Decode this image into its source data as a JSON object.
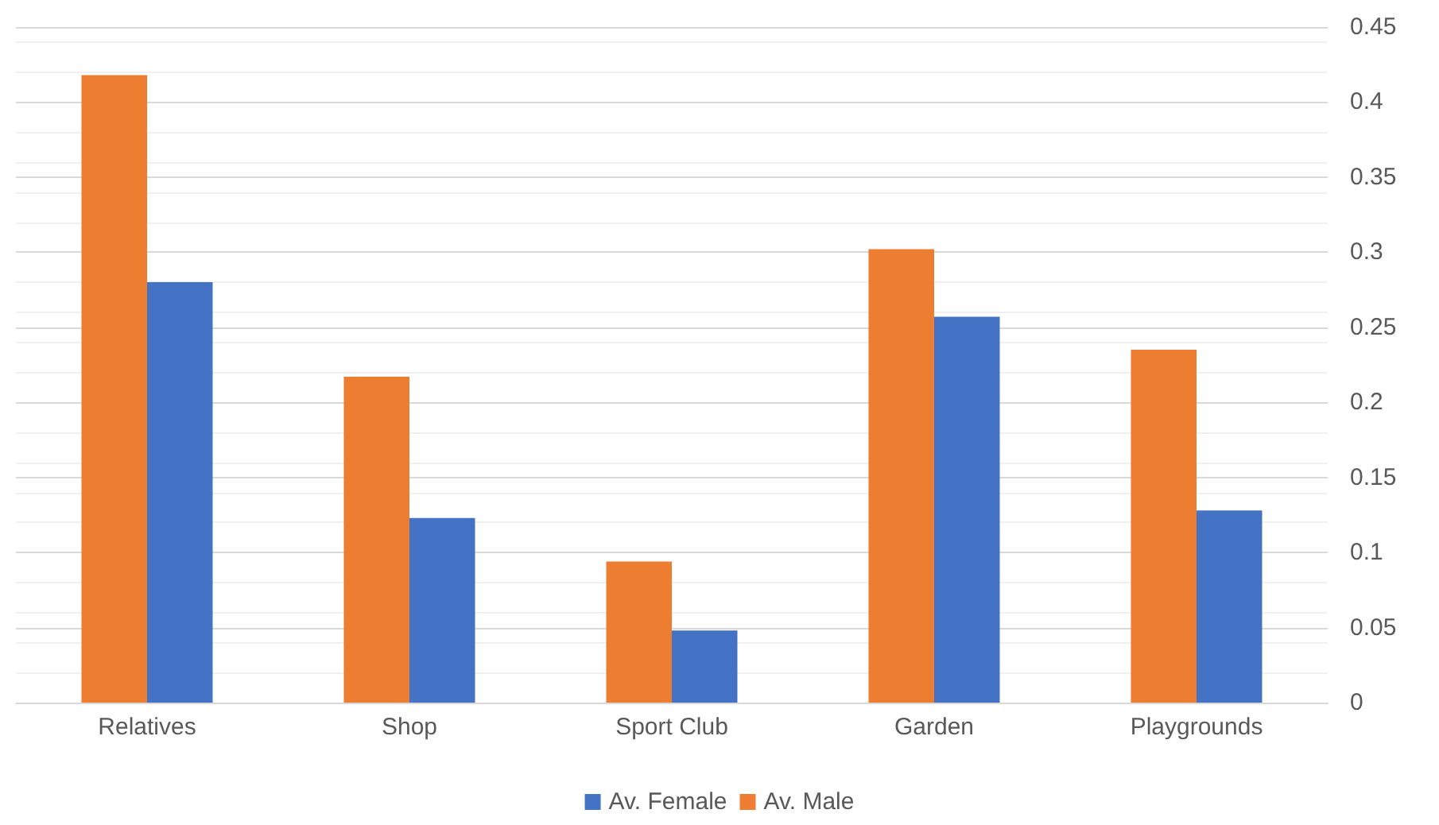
{
  "chart_data": {
    "type": "bar",
    "categories": [
      "Relatives",
      "Shop",
      "Sport Club",
      "Garden",
      "Playgrounds"
    ],
    "series": [
      {
        "name": "Av. Male",
        "color": "#ed7d31",
        "values": [
          0.418,
          0.217,
          0.094,
          0.302,
          0.235
        ]
      },
      {
        "name": "Av. Female",
        "color": "#4472c4",
        "values": [
          0.28,
          0.123,
          0.048,
          0.257,
          0.128
        ]
      }
    ],
    "ylim": [
      0,
      0.45
    ],
    "yticks": [
      0,
      0.05,
      0.1,
      0.15,
      0.2,
      0.25,
      0.3,
      0.35,
      0.4,
      0.45
    ],
    "grid": "y",
    "legend": "bottom"
  }
}
